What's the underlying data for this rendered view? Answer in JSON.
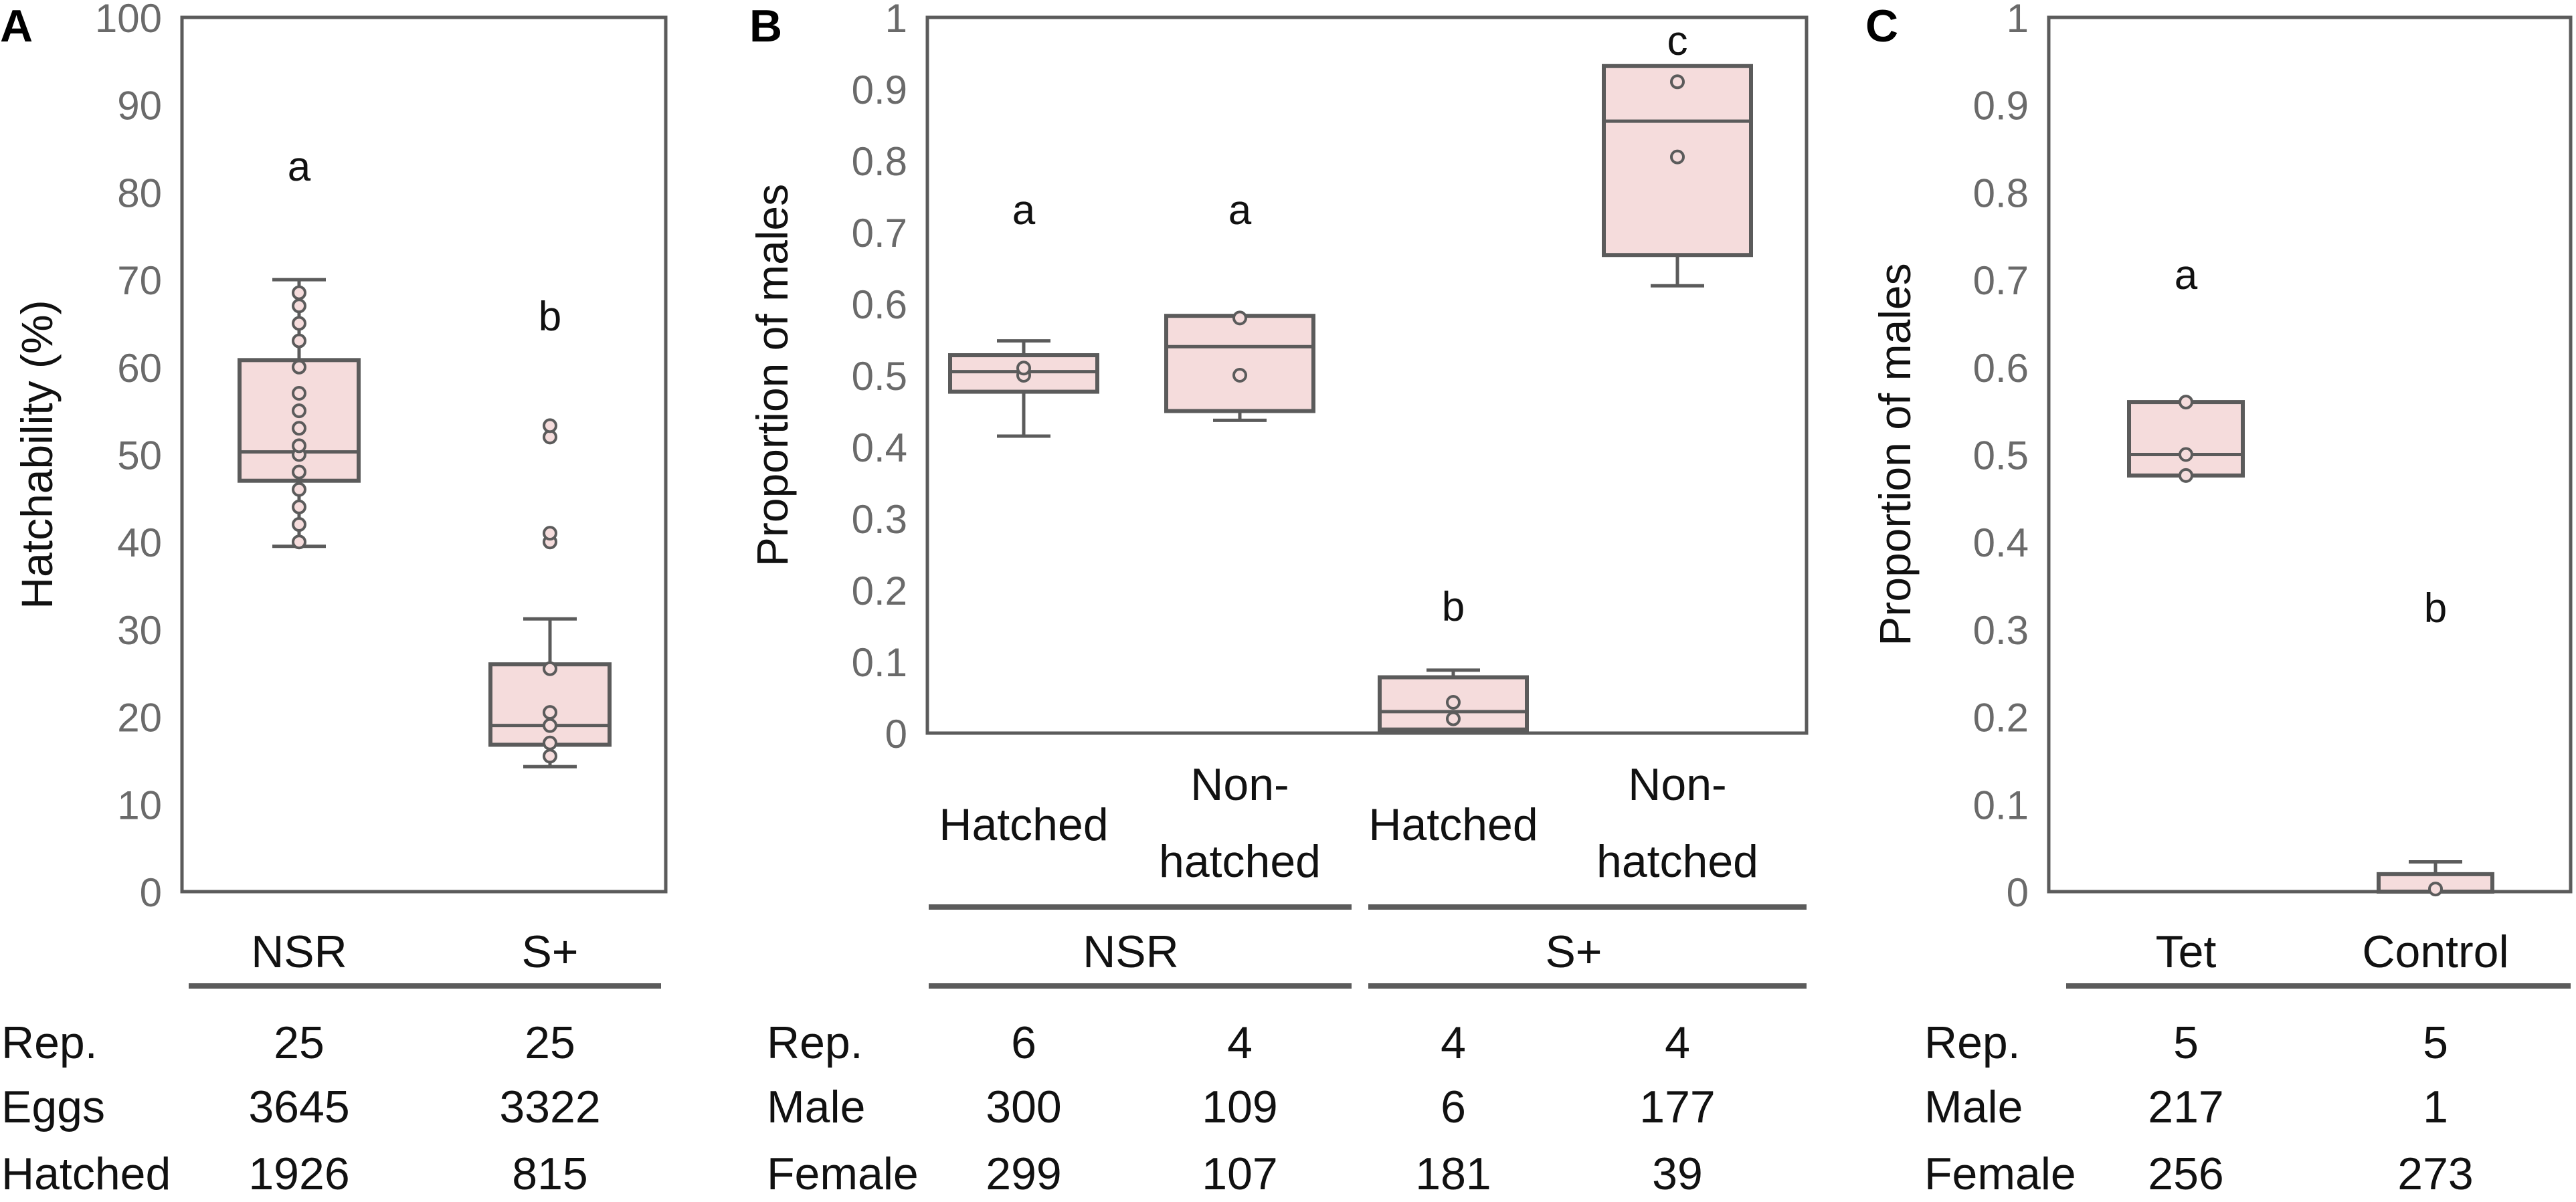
{
  "colors": {
    "box_fill": "#f5dcdc",
    "stroke": "#5b5b5b",
    "tick_text": "#6a6a6a"
  },
  "chart_data": [
    {
      "panel": "A",
      "type": "box",
      "ylabel": "Hatchability (%)",
      "ylim": [
        0,
        100
      ],
      "yticks": [
        "0",
        "10",
        "20",
        "30",
        "40",
        "50",
        "60",
        "70",
        "80",
        "90",
        "100"
      ],
      "groups": [
        {
          "name": "NSR",
          "whisker_low": 39.5,
          "q1": 47,
          "median": 50.3,
          "q3": 60.8,
          "whisker_high": 70,
          "letter": "a",
          "points": [
            40,
            42,
            44,
            46,
            48,
            50,
            51,
            53,
            55,
            57,
            60,
            63,
            65,
            67,
            68.5
          ]
        },
        {
          "name": "S+",
          "whisker_low": 14.3,
          "q1": 16.8,
          "median": 19,
          "q3": 26,
          "whisker_high": 31.2,
          "letter": "b",
          "points": [
            15.5,
            17,
            19,
            20.5,
            25.5,
            40,
            41,
            52,
            53.3
          ]
        }
      ],
      "table": {
        "row_labels": [
          "Rep.",
          "Eggs",
          "Hatched"
        ],
        "columns": [
          {
            "name": "NSR",
            "values": [
              "25",
              "3645",
              "1926"
            ]
          },
          {
            "name": "S+",
            "values": [
              "25",
              "3322",
              "815"
            ]
          }
        ]
      }
    },
    {
      "panel": "B",
      "type": "box",
      "ylabel": "Proportion of males",
      "ylim": [
        0,
        1
      ],
      "yticks": [
        "0",
        "0.1",
        "0.2",
        "0.3",
        "0.4",
        "0.5",
        "0.6",
        "0.7",
        "0.8",
        "0.9",
        "1"
      ],
      "groups": [
        {
          "name": "Hatched",
          "line1": "Hatched",
          "line2": "",
          "strain": "NSR",
          "whisker_low": 0.415,
          "q1": 0.477,
          "median": 0.505,
          "q3": 0.528,
          "whisker_high": 0.548,
          "letter": "a",
          "points": [
            0.5,
            0.51
          ]
        },
        {
          "name": "Non-hatched",
          "line1": "Non-",
          "line2": "hatched",
          "strain": "NSR",
          "whisker_low": 0.437,
          "q1": 0.45,
          "median": 0.54,
          "q3": 0.583,
          "whisker_high": 0.583,
          "letter": "a",
          "points": [
            0.5,
            0.58
          ]
        },
        {
          "name": "Hatched",
          "line1": "Hatched",
          "line2": "",
          "strain": "S+",
          "whisker_low": 0.0,
          "q1": 0.005,
          "median": 0.03,
          "q3": 0.078,
          "whisker_high": 0.088,
          "letter": "b",
          "points": [
            0.02,
            0.043
          ]
        },
        {
          "name": "Non-hatched",
          "line1": "Non-",
          "line2": "hatched",
          "strain": "S+",
          "whisker_low": 0.625,
          "q1": 0.668,
          "median": 0.855,
          "q3": 0.932,
          "whisker_high": 0.932,
          "letter": "c",
          "points": [
            0.805,
            0.91
          ]
        }
      ],
      "strains": [
        "NSR",
        "S+"
      ],
      "table": {
        "row_labels": [
          "Rep.",
          "Male",
          "Female"
        ],
        "columns": [
          {
            "values": [
              "6",
              "300",
              "299"
            ]
          },
          {
            "values": [
              "4",
              "109",
              "107"
            ]
          },
          {
            "values": [
              "4",
              "6",
              "181"
            ]
          },
          {
            "values": [
              "4",
              "177",
              "39"
            ]
          }
        ]
      }
    },
    {
      "panel": "C",
      "type": "box",
      "ylabel": "Proportion of males",
      "ylim": [
        0,
        1
      ],
      "yticks": [
        "0",
        "0.1",
        "0.2",
        "0.3",
        "0.4",
        "0.5",
        "0.6",
        "0.7",
        "0.8",
        "0.9",
        "1"
      ],
      "groups": [
        {
          "name": "Tet",
          "whisker_low": 0.476,
          "q1": 0.476,
          "median": 0.5,
          "q3": 0.56,
          "whisker_high": 0.56,
          "letter": "a",
          "points": [
            0.476,
            0.5,
            0.56
          ]
        },
        {
          "name": "Control",
          "whisker_low": 0.0,
          "q1": 0.0,
          "median": 0.0,
          "q3": 0.02,
          "whisker_high": 0.034,
          "letter": "b",
          "points": [
            0.003
          ]
        }
      ],
      "table": {
        "row_labels": [
          "Rep.",
          "Male",
          "Female"
        ],
        "columns": [
          {
            "name": "Tet",
            "values": [
              "5",
              "217",
              "256"
            ]
          },
          {
            "name": "Control",
            "values": [
              "5",
              "1",
              "273"
            ]
          }
        ]
      }
    }
  ]
}
